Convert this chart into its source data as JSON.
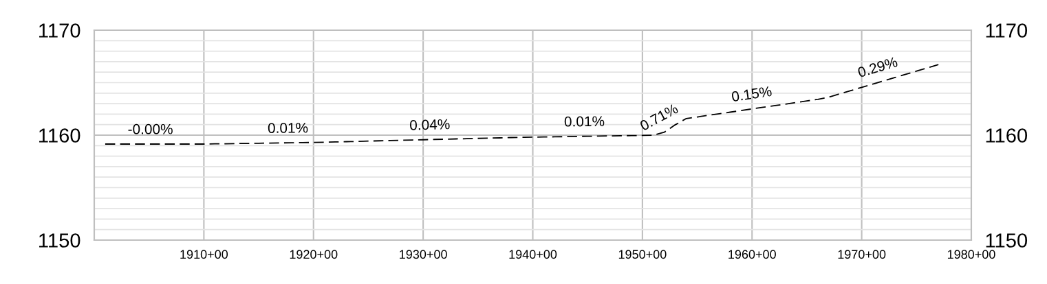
{
  "chart_data": {
    "type": "line",
    "categories": [
      null,
      null,
      null,
      null,
      null,
      null,
      null,
      null,
      null,
      null,
      "1910+00",
      null,
      null,
      null,
      null,
      null,
      null,
      null,
      null,
      null,
      "1920+00",
      null,
      null,
      null,
      null,
      null,
      null,
      null,
      null,
      null,
      "1930+00",
      null,
      null,
      null,
      null,
      null,
      null,
      null,
      null,
      null,
      "1940+00",
      null,
      null,
      null,
      null,
      null,
      null,
      null,
      null,
      null,
      "1950+00",
      null,
      null,
      null,
      null,
      null,
      null,
      null,
      null,
      null,
      "1960+00",
      null,
      null,
      null,
      null,
      null,
      null,
      null,
      null,
      null,
      "1970+00",
      null,
      null,
      null,
      null,
      null,
      null,
      null,
      null,
      null,
      "1980+00"
    ],
    "series": [
      {
        "color": "#000000",
        "values": [
          null,
          1159.15,
          1159.15,
          1159.15,
          1159.15,
          1159.15,
          1159.15,
          1159.15,
          1159.15,
          1159.15,
          1159.15,
          1159.17,
          1159.18,
          1159.2,
          1159.21,
          1159.23,
          1159.24,
          1159.26,
          1159.27,
          1159.29,
          1159.3,
          1159.33,
          1159.35,
          1159.38,
          1159.4,
          1159.43,
          1159.46,
          1159.48,
          1159.51,
          1159.54,
          1159.56,
          1159.59,
          1159.61,
          1159.64,
          1159.66,
          1159.69,
          1159.72,
          1159.74,
          1159.77,
          1159.79,
          1159.81,
          1159.83,
          1159.84,
          1159.86,
          1159.88,
          1159.89,
          1159.91,
          1159.93,
          1159.94,
          1159.96,
          1159.97,
          1159.99,
          1160.28,
          1160.99,
          1161.58,
          1161.73,
          1161.89,
          1162.04,
          1162.19,
          1162.34,
          1162.5,
          1162.65,
          1162.8,
          1162.95,
          1163.1,
          1163.26,
          1163.41,
          1163.62,
          1163.93,
          1164.24,
          1164.55,
          1164.86,
          1165.17,
          1165.48,
          1165.79,
          1166.1,
          1166.41,
          1166.72,
          null,
          null,
          null
        ]
      }
    ],
    "ylim": [
      1150,
      1170
    ],
    "yticks": [
      1150,
      {
        "value": 1151,
        "label": null
      },
      {
        "value": 1152,
        "label": null
      },
      {
        "value": 1153,
        "label": null
      },
      {
        "value": 1154,
        "label": null
      },
      {
        "value": 1155,
        "label": null
      },
      {
        "value": 1156,
        "label": null
      },
      {
        "value": 1157,
        "label": null
      },
      {
        "value": 1158,
        "label": null
      },
      {
        "value": 1159,
        "label": null
      },
      1160,
      {
        "value": 1161,
        "label": null
      },
      {
        "value": 1162,
        "label": null
      },
      {
        "value": 1163,
        "label": null
      },
      {
        "value": 1164,
        "label": null
      },
      {
        "value": 1165,
        "label": null
      },
      {
        "value": 1166,
        "label": null
      },
      {
        "value": 1167,
        "label": null
      },
      {
        "value": 1168,
        "label": null
      },
      {
        "value": 1169,
        "label": null
      },
      1170
    ],
    "y2lim": [
      1150,
      1170
    ],
    "y2ticks": [
      1150,
      1160,
      1170
    ],
    "annotations": [
      "-0.00%",
      "0.01%",
      "0.04%",
      "0.01%",
      "0.71%",
      "0.15%",
      "0.29%"
    ],
    "grid": true,
    "line_style": "dashed",
    "marker": "none",
    "legend": false
  }
}
